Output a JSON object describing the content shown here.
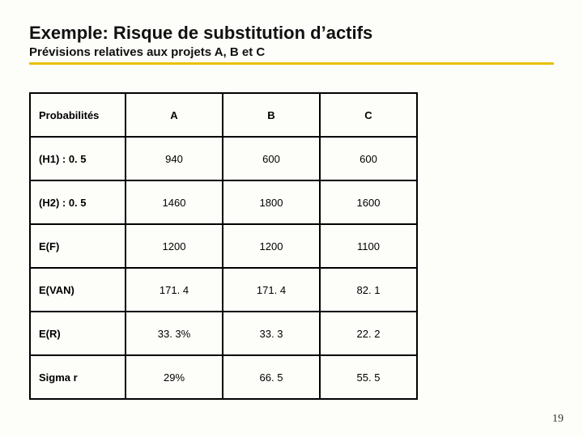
{
  "title": "Exemple: Risque de substitution d’actifs",
  "subtitle": "Prévisions relatives aux projets A, B et C",
  "underline_color": "#e8c000",
  "table": {
    "columns": [
      "Probabilités",
      "A",
      "B",
      "C"
    ],
    "rows": [
      [
        "(H1) : 0. 5",
        "940",
        "600",
        "600"
      ],
      [
        "(H2) : 0. 5",
        "1460",
        "1800",
        "1600"
      ],
      [
        "E(F)",
        "1200",
        "1200",
        "1100"
      ],
      [
        "E(VAN)",
        "171. 4",
        "171. 4",
        "82. 1"
      ],
      [
        "E(R)",
        "33. 3%",
        "33. 3",
        "22. 2"
      ],
      [
        "Sigma r",
        "29%",
        "66. 5",
        "55. 5"
      ]
    ],
    "border_color": "#000000",
    "background_color": "#fdfdfa",
    "header_fontsize": 13,
    "cell_fontsize": 13
  },
  "page_number": "19"
}
